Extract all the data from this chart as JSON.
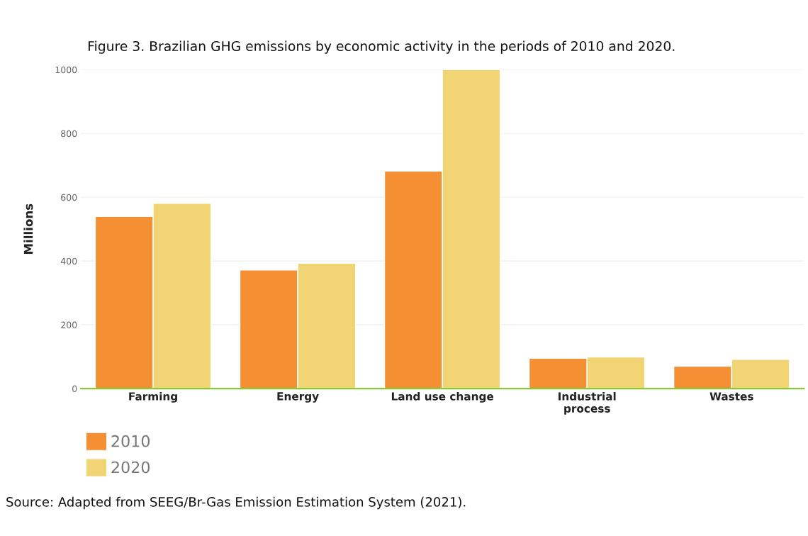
{
  "chart_data": {
    "type": "bar",
    "title": "Figure 3. Brazilian GHG emissions by economic activity in the periods of 2010 and 2020.",
    "ylabel": "Millions",
    "categories": [
      "Farming",
      "Energy",
      "Land use change",
      "Industrial\nprocess",
      "Wastes"
    ],
    "series": [
      {
        "name": "2010",
        "color": "#f48f33",
        "values": [
          540,
          372,
          682,
          95,
          70
        ]
      },
      {
        "name": "2020",
        "color": "#f1d574",
        "values": [
          581,
          393,
          1000,
          99,
          92
        ]
      }
    ],
    "ylim": [
      0,
      1000
    ],
    "yticks": [
      0,
      200,
      400,
      600,
      800,
      1000
    ],
    "grid": "y",
    "legend": "bottom left",
    "annotations": [
      "Source: Adapted from SEEG/Br-Gas Emission Estimation System (2021)."
    ]
  }
}
